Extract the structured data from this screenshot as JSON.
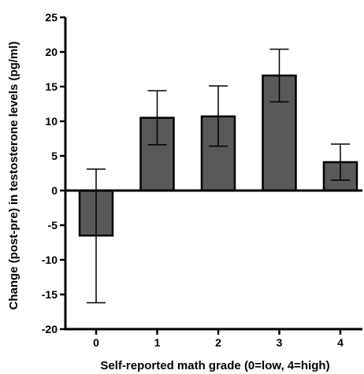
{
  "chart_data": {
    "type": "bar",
    "title": "",
    "xlabel": "Self-reported math grade (0=low, 4=high)",
    "ylabel": "Change (post-pre) in testosterone levels (pg/ml)",
    "categories": [
      "0",
      "1",
      "2",
      "3",
      "4"
    ],
    "values": [
      -6.5,
      10.5,
      10.7,
      16.6,
      4.1
    ],
    "error_low": [
      -16.2,
      6.6,
      6.4,
      12.8,
      1.5
    ],
    "error_high": [
      3.1,
      14.4,
      15.1,
      20.4,
      6.7
    ],
    "ylim": [
      -20,
      25
    ],
    "yticks": [
      "25",
      "20",
      "15",
      "10",
      "5",
      "0",
      "-5",
      "-10",
      "-15",
      "-20"
    ],
    "grid": false,
    "colors": {
      "bar_fill": "#595959",
      "bar_stroke": "#000000"
    }
  }
}
